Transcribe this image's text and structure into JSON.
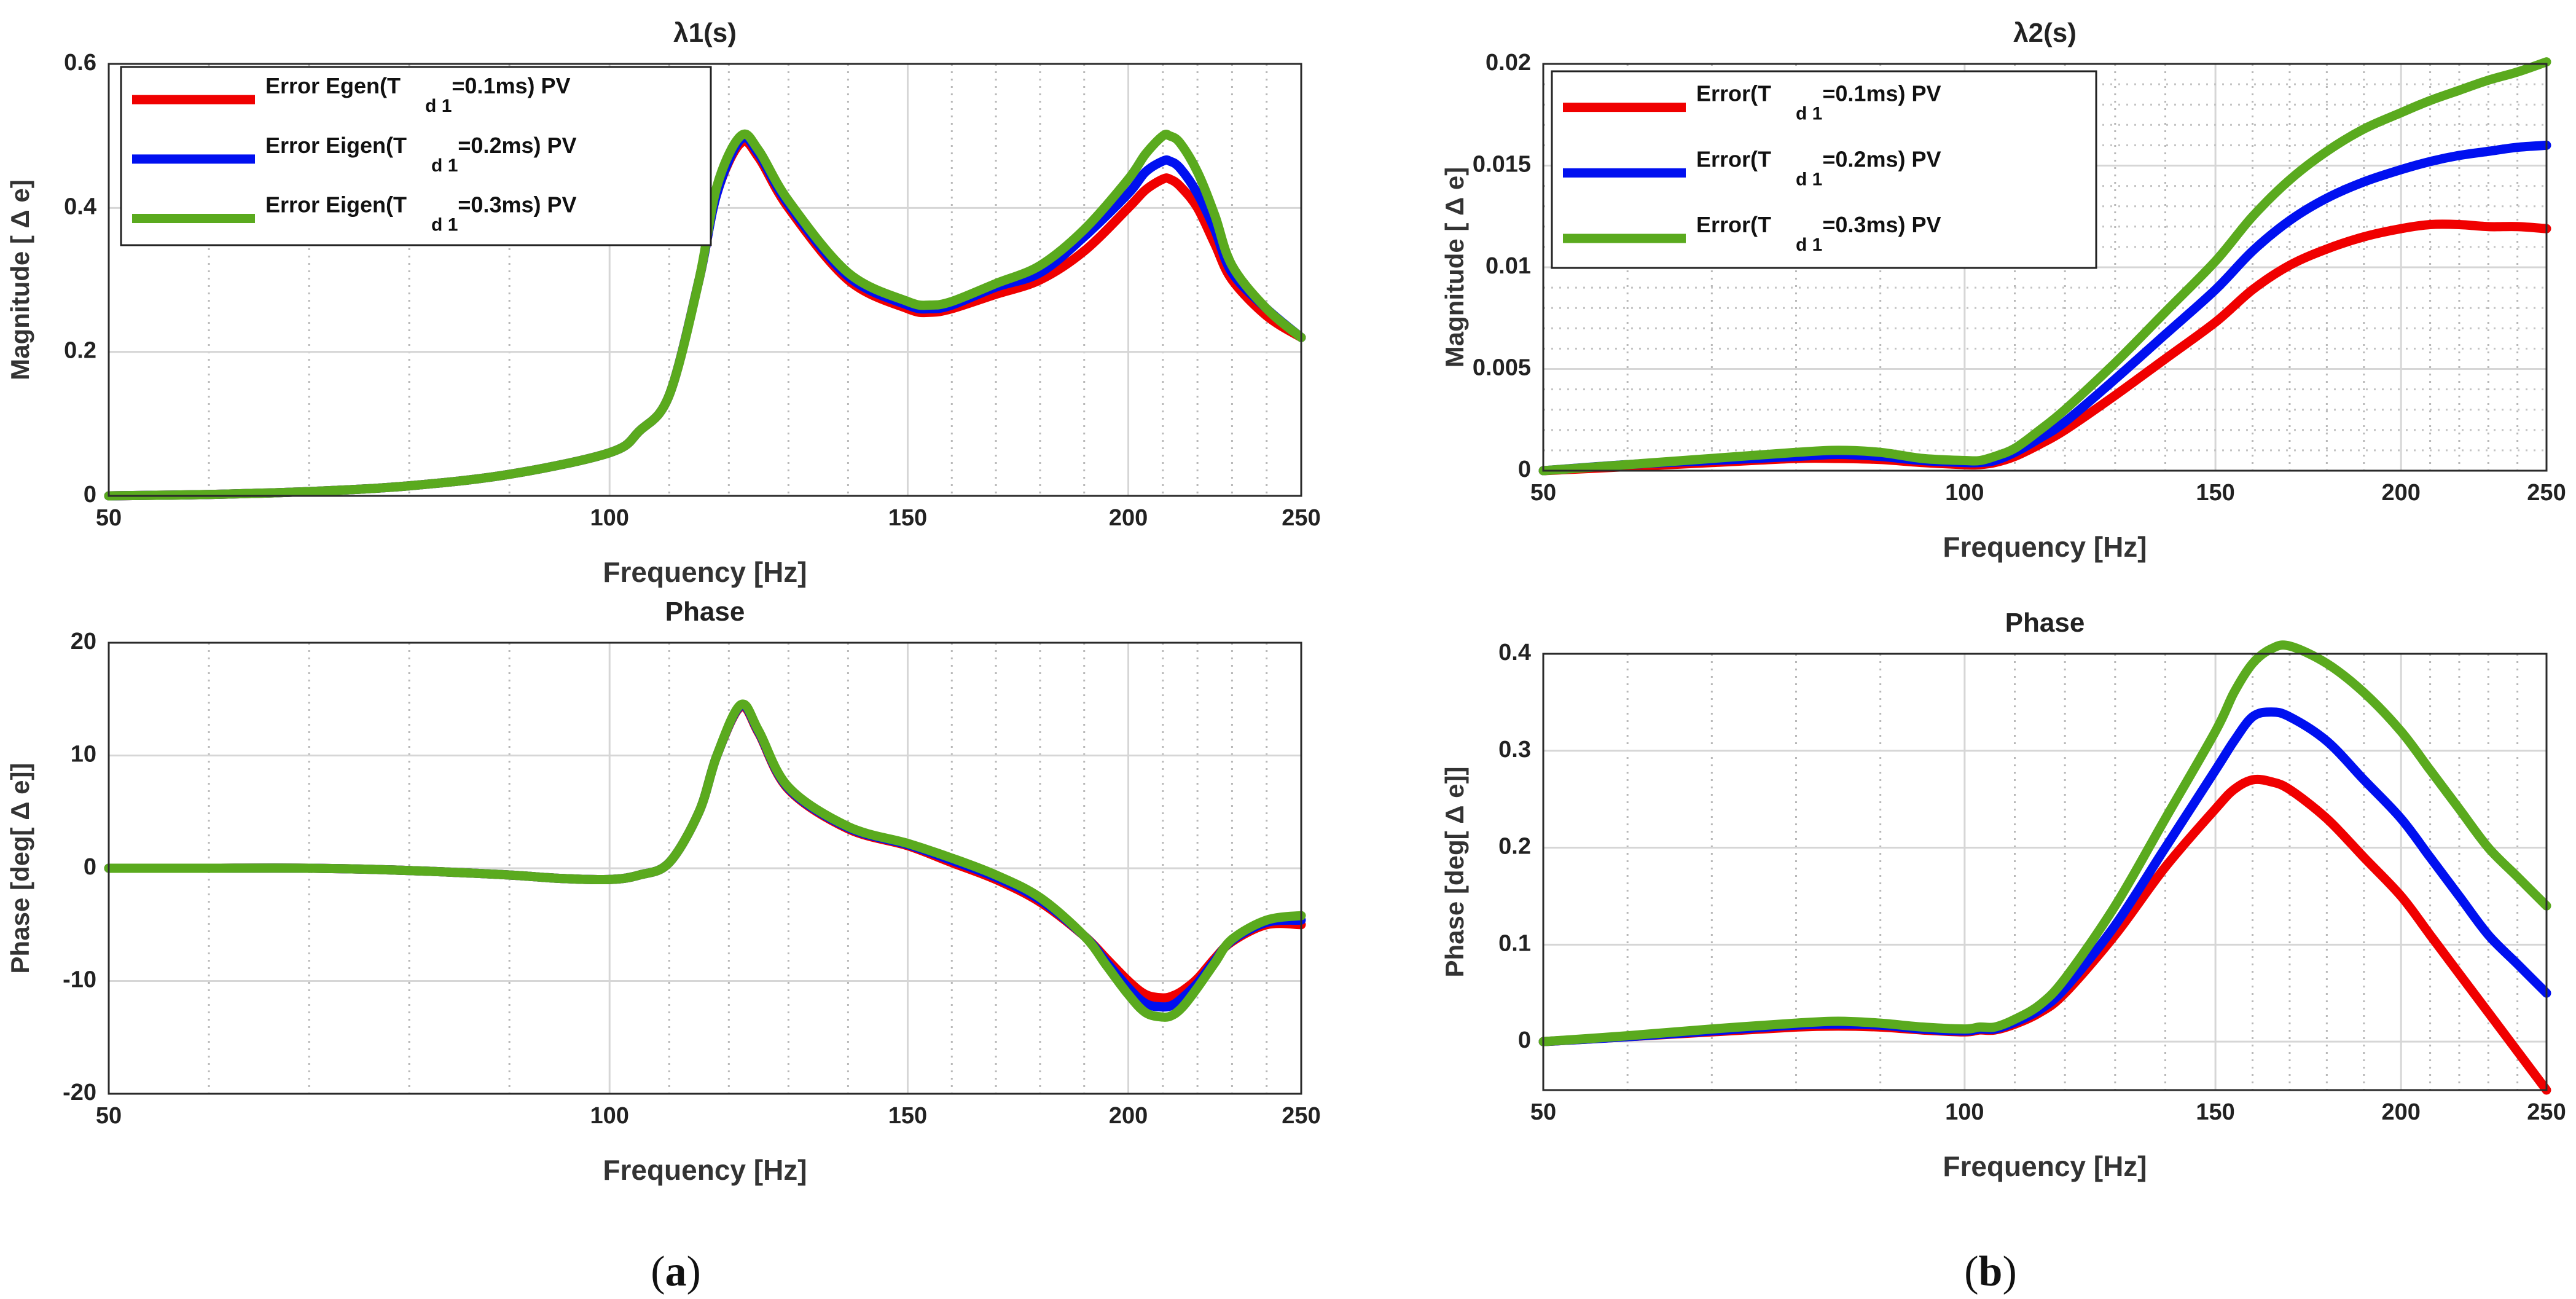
{
  "captions": {
    "a": "a",
    "b": "b"
  },
  "legend_subscript": "d 1",
  "colors": {
    "red": "#f00000",
    "blue": "#0010f0",
    "green": "#5aaa1e"
  },
  "chart_data": [
    {
      "id": "a_mag",
      "type": "line",
      "title": "λ1(s)",
      "xlabel": "Frequency [Hz]",
      "ylabel_main": "Magnitude [",
      "ylabel_delta": "Δ",
      "ylabel_tail": "e]",
      "xlim": [
        50,
        250
      ],
      "ylim": [
        0,
        0.6
      ],
      "xticks": [
        50,
        100,
        150,
        200,
        250
      ],
      "yticks": [
        0,
        0.2,
        0.4,
        0.6
      ],
      "ytick_labels": [
        "0",
        "0.2",
        "0.4",
        "0.6"
      ],
      "legend": {
        "position": "top-left",
        "entries": [
          {
            "prefix": "Error  Egen(T",
            "suffix": "=0.1ms) PV",
            "color": "red"
          },
          {
            "prefix": "Error  Eigen(T",
            "suffix": "=0.2ms) PV",
            "color": "blue"
          },
          {
            "prefix": "Error Eigen(T",
            "suffix": "=0.3ms) PV",
            "color": "green"
          }
        ]
      },
      "series": [
        {
          "name": "Td1=0.1ms",
          "color": "red",
          "x": [
            50,
            60,
            70,
            80,
            90,
            100,
            105,
            110,
            115,
            118,
            122,
            125,
            130,
            140,
            150,
            155,
            160,
            170,
            180,
            190,
            200,
            205,
            210,
            212,
            215,
            220,
            225,
            230,
            240,
            250
          ],
          "y": [
            0,
            0.002,
            0.006,
            0.014,
            0.03,
            0.06,
            0.09,
            0.14,
            0.3,
            0.42,
            0.49,
            0.47,
            0.4,
            0.3,
            0.26,
            0.255,
            0.26,
            0.28,
            0.3,
            0.34,
            0.4,
            0.425,
            0.44,
            0.44,
            0.43,
            0.4,
            0.35,
            0.3,
            0.25,
            0.22
          ]
        },
        {
          "name": "Td1=0.2ms",
          "color": "blue",
          "x": [
            50,
            60,
            70,
            80,
            90,
            100,
            105,
            110,
            115,
            118,
            122,
            125,
            130,
            140,
            150,
            155,
            160,
            170,
            180,
            190,
            200,
            205,
            210,
            212,
            215,
            220,
            225,
            230,
            240,
            250
          ],
          "y": [
            0,
            0.002,
            0.006,
            0.014,
            0.03,
            0.06,
            0.09,
            0.14,
            0.3,
            0.42,
            0.495,
            0.475,
            0.405,
            0.305,
            0.265,
            0.26,
            0.265,
            0.29,
            0.31,
            0.36,
            0.42,
            0.45,
            0.465,
            0.465,
            0.455,
            0.42,
            0.37,
            0.31,
            0.26,
            0.22
          ]
        },
        {
          "name": "Td1=0.3ms",
          "color": "green",
          "x": [
            50,
            60,
            70,
            80,
            90,
            100,
            105,
            110,
            115,
            118,
            122,
            125,
            130,
            140,
            150,
            155,
            160,
            170,
            180,
            190,
            200,
            205,
            210,
            212,
            215,
            220,
            225,
            230,
            240,
            250
          ],
          "y": [
            0,
            0.002,
            0.006,
            0.014,
            0.03,
            0.06,
            0.09,
            0.14,
            0.3,
            0.43,
            0.5,
            0.48,
            0.41,
            0.31,
            0.27,
            0.265,
            0.27,
            0.295,
            0.32,
            0.37,
            0.44,
            0.475,
            0.5,
            0.5,
            0.49,
            0.45,
            0.39,
            0.32,
            0.26,
            0.22
          ]
        }
      ]
    },
    {
      "id": "a_phase",
      "type": "line",
      "title": "Phase",
      "xlabel": "Frequency [Hz]",
      "ylabel_main": "Phase [deg[",
      "ylabel_delta": "Δ",
      "ylabel_tail": "e]]",
      "xlim": [
        50,
        250
      ],
      "ylim": [
        -20,
        20
      ],
      "xticks": [
        50,
        100,
        150,
        200,
        250
      ],
      "yticks": [
        -20,
        -10,
        0,
        10,
        20
      ],
      "ytick_labels": [
        "-20",
        "-10",
        "0",
        "10",
        "20"
      ],
      "series": [
        {
          "name": "Td1=0.1ms",
          "color": "red",
          "x": [
            50,
            60,
            70,
            80,
            90,
            95,
            100,
            105,
            110,
            115,
            118,
            122,
            125,
            130,
            140,
            150,
            160,
            170,
            180,
            190,
            195,
            200,
            205,
            210,
            213,
            216,
            220,
            225,
            230,
            240,
            250
          ],
          "y": [
            0,
            0,
            0,
            -0.2,
            -0.6,
            -0.9,
            -1,
            -0.6,
            0.5,
            5,
            10,
            14.3,
            12,
            7,
            3.5,
            2,
            0.5,
            -1,
            -3,
            -6,
            -8,
            -10,
            -11.2,
            -11.5,
            -11.3,
            -10.8,
            -9.8,
            -8,
            -6.5,
            -5,
            -5
          ]
        },
        {
          "name": "Td1=0.2ms",
          "color": "blue",
          "x": [
            50,
            60,
            70,
            80,
            90,
            95,
            100,
            105,
            110,
            115,
            118,
            122,
            125,
            130,
            140,
            150,
            160,
            170,
            180,
            190,
            195,
            200,
            205,
            210,
            213,
            216,
            220,
            225,
            230,
            240,
            250
          ],
          "y": [
            0,
            0,
            0,
            -0.2,
            -0.6,
            -0.9,
            -1,
            -0.6,
            0.5,
            5,
            10,
            14.4,
            12.1,
            7.1,
            3.6,
            2.1,
            0.7,
            -0.8,
            -2.8,
            -6,
            -8.3,
            -10.6,
            -12,
            -12.3,
            -12.1,
            -11.4,
            -10.2,
            -8.2,
            -6.4,
            -4.8,
            -4.6
          ]
        },
        {
          "name": "Td1=0.3ms",
          "color": "green",
          "x": [
            50,
            60,
            70,
            80,
            90,
            95,
            100,
            105,
            110,
            115,
            118,
            122,
            125,
            130,
            140,
            150,
            160,
            170,
            180,
            190,
            195,
            200,
            205,
            210,
            213,
            216,
            220,
            225,
            230,
            240,
            250
          ],
          "y": [
            0,
            0,
            0,
            -0.2,
            -0.6,
            -0.9,
            -1,
            -0.6,
            0.5,
            5,
            10,
            14.5,
            12.2,
            7.2,
            3.7,
            2.2,
            0.9,
            -0.6,
            -2.6,
            -6,
            -8.6,
            -11.2,
            -12.8,
            -13.2,
            -13,
            -12.2,
            -10.6,
            -8.4,
            -6.3,
            -4.6,
            -4.2
          ]
        }
      ]
    },
    {
      "id": "b_mag",
      "type": "line",
      "title": "λ2(s)",
      "xlabel": "Frequency [Hz]",
      "ylabel_main": "Magnitude [",
      "ylabel_delta": "Δ",
      "ylabel_tail": "e]",
      "xlim": [
        50,
        250
      ],
      "ylim": [
        0,
        0.02
      ],
      "xticks": [
        50,
        100,
        150,
        200,
        250
      ],
      "yticks": [
        0,
        0.005,
        0.01,
        0.015,
        0.02
      ],
      "ytick_labels": [
        "0",
        "0.005",
        "0.01",
        "0.015",
        "0.02"
      ],
      "legend": {
        "position": "top-left",
        "entries": [
          {
            "prefix": "Error(T",
            "suffix": "=0.1ms) PV",
            "color": "red"
          },
          {
            "prefix": "Error(T",
            "suffix": "=0.2ms) PV",
            "color": "blue"
          },
          {
            "prefix": "Error(T",
            "suffix": "=0.3ms) PV",
            "color": "green"
          }
        ]
      },
      "series": [
        {
          "name": "Td1=0.1ms",
          "color": "red",
          "x": [
            50,
            60,
            70,
            80,
            85,
            90,
            95,
            100,
            103,
            106,
            110,
            115,
            120,
            130,
            140,
            150,
            160,
            170,
            180,
            190,
            200,
            210,
            220,
            230,
            240,
            250
          ],
          "y": [
            0,
            0.0002,
            0.0004,
            0.0006,
            0.0006,
            0.00055,
            0.0004,
            0.0003,
            0.0003,
            0.0004,
            0.0007,
            0.0013,
            0.002,
            0.0037,
            0.0055,
            0.0073,
            0.0089,
            0.0101,
            0.0109,
            0.0115,
            0.0119,
            0.0121,
            0.0121,
            0.012,
            0.012,
            0.0119
          ]
        },
        {
          "name": "Td1=0.2ms",
          "color": "blue",
          "x": [
            50,
            60,
            70,
            80,
            85,
            90,
            95,
            100,
            103,
            106,
            110,
            115,
            120,
            130,
            140,
            150,
            160,
            170,
            180,
            190,
            200,
            210,
            220,
            230,
            240,
            250
          ],
          "y": [
            0,
            0.0003,
            0.0005,
            0.0007,
            0.0008,
            0.0007,
            0.0005,
            0.0004,
            0.0004,
            0.0005,
            0.0009,
            0.0016,
            0.0024,
            0.0045,
            0.0067,
            0.0089,
            0.0108,
            0.0123,
            0.0134,
            0.0142,
            0.0148,
            0.0152,
            0.0155,
            0.0157,
            0.0159,
            0.016
          ]
        },
        {
          "name": "Td1=0.3ms",
          "color": "green",
          "x": [
            50,
            60,
            70,
            80,
            85,
            90,
            95,
            100,
            103,
            106,
            110,
            115,
            120,
            130,
            140,
            150,
            160,
            170,
            180,
            190,
            200,
            210,
            220,
            230,
            240,
            250
          ],
          "y": [
            0,
            0.0003,
            0.0006,
            0.0009,
            0.001,
            0.0009,
            0.0006,
            0.0005,
            0.0005,
            0.0007,
            0.0011,
            0.002,
            0.003,
            0.0053,
            0.0078,
            0.0103,
            0.0125,
            0.0143,
            0.0157,
            0.0168,
            0.0176,
            0.0182,
            0.0187,
            0.0192,
            0.0196,
            0.0201
          ]
        }
      ]
    },
    {
      "id": "b_phase",
      "type": "line",
      "title": "Phase",
      "xlabel": "Frequency [Hz]",
      "ylabel_main": "Phase [deg[",
      "ylabel_delta": "Δ",
      "ylabel_tail": "e]]",
      "xlim": [
        50,
        250
      ],
      "ylim": [
        -0.05,
        0.4
      ],
      "xticks": [
        50,
        100,
        150,
        200,
        250
      ],
      "yticks": [
        0,
        0.1,
        0.2,
        0.3,
        0.4
      ],
      "ytick_labels": [
        "0",
        "0.1",
        "0.2",
        "0.3",
        "0.4"
      ],
      "series": [
        {
          "name": "Td1=0.1ms",
          "color": "red",
          "x": [
            50,
            60,
            70,
            80,
            85,
            90,
            95,
            100,
            103,
            106,
            110,
            115,
            120,
            130,
            140,
            150,
            155,
            160,
            165,
            170,
            180,
            190,
            200,
            210,
            220,
            230,
            240,
            250
          ],
          "y": [
            0,
            0.005,
            0.01,
            0.015,
            0.016,
            0.015,
            0.012,
            0.01,
            0.012,
            0.012,
            0.018,
            0.03,
            0.05,
            0.11,
            0.18,
            0.24,
            0.26,
            0.27,
            0.268,
            0.26,
            0.23,
            0.19,
            0.15,
            0.11,
            0.07,
            0.03,
            -0.01,
            -0.05
          ]
        },
        {
          "name": "Td1=0.2ms",
          "color": "blue",
          "x": [
            50,
            60,
            70,
            80,
            85,
            90,
            95,
            100,
            103,
            106,
            110,
            115,
            120,
            130,
            140,
            150,
            155,
            160,
            165,
            170,
            180,
            190,
            200,
            210,
            220,
            230,
            240,
            250
          ],
          "y": [
            0,
            0.005,
            0.011,
            0.017,
            0.018,
            0.017,
            0.013,
            0.011,
            0.013,
            0.013,
            0.02,
            0.033,
            0.055,
            0.12,
            0.2,
            0.28,
            0.31,
            0.335,
            0.34,
            0.335,
            0.31,
            0.27,
            0.23,
            0.19,
            0.15,
            0.11,
            0.08,
            0.05
          ]
        },
        {
          "name": "Td1=0.3ms",
          "color": "green",
          "x": [
            50,
            60,
            70,
            80,
            85,
            90,
            95,
            100,
            103,
            106,
            110,
            115,
            120,
            130,
            140,
            150,
            155,
            160,
            165,
            170,
            180,
            190,
            200,
            210,
            220,
            230,
            240,
            250
          ],
          "y": [
            0,
            0.006,
            0.013,
            0.019,
            0.021,
            0.019,
            0.015,
            0.013,
            0.015,
            0.015,
            0.023,
            0.038,
            0.065,
            0.14,
            0.23,
            0.32,
            0.36,
            0.39,
            0.405,
            0.408,
            0.39,
            0.36,
            0.32,
            0.28,
            0.24,
            0.2,
            0.17,
            0.14
          ]
        }
      ]
    }
  ]
}
